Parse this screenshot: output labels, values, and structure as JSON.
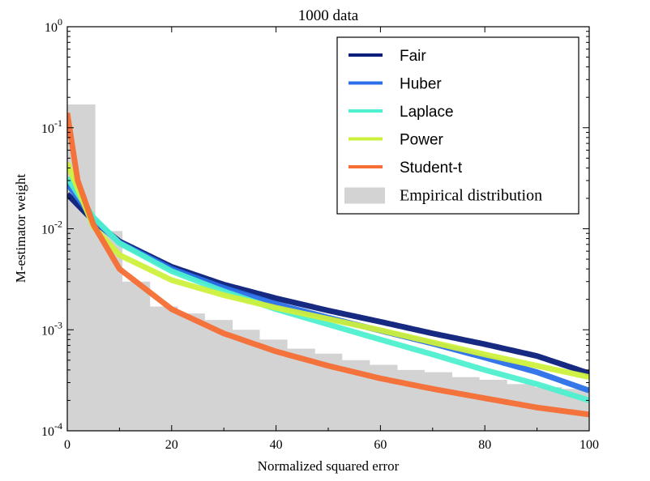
{
  "chart_data": {
    "type": "line",
    "title": "1000 data",
    "xlabel": "Normalized squared error",
    "ylabel": "M-estimator weight",
    "xlim": [
      0,
      100
    ],
    "ylim": [
      0.0001,
      1
    ],
    "yscale": "log",
    "grid": false,
    "legend_position": "top-right",
    "x_ticks": [
      {
        "value": 0,
        "label": "0"
      },
      {
        "value": 20,
        "label": "20"
      },
      {
        "value": 40,
        "label": "40"
      },
      {
        "value": 60,
        "label": "60"
      },
      {
        "value": 80,
        "label": "80"
      },
      {
        "value": 100,
        "label": "100"
      }
    ],
    "y_ticks": [
      {
        "value": 1,
        "base": "10",
        "exp": "0"
      },
      {
        "value": 0.1,
        "base": "10",
        "exp": "-1"
      },
      {
        "value": 0.01,
        "base": "10",
        "exp": "-2"
      },
      {
        "value": 0.001,
        "base": "10",
        "exp": "-3"
      },
      {
        "value": 0.0001,
        "base": "10",
        "exp": "-4"
      }
    ],
    "histogram": {
      "name": "Empirical distribution",
      "color": "#d3d3d3",
      "bin_edges": [
        0,
        5.3,
        10.5,
        15.8,
        21.1,
        26.3,
        31.6,
        36.8,
        42.1,
        47.4,
        52.6,
        57.9,
        63.2,
        68.4,
        73.7,
        78.9,
        84.2,
        89.5,
        94.7,
        100
      ],
      "values": [
        0.17,
        0.0095,
        0.003,
        0.0017,
        0.00145,
        0.00125,
        0.001,
        0.0008,
        0.00065,
        0.00058,
        0.0005,
        0.00045,
        0.0004,
        0.00038,
        0.00034,
        0.00032,
        0.00029,
        0.00027,
        0.00026
      ]
    },
    "series": [
      {
        "name": "Fair",
        "color": "#0b1f7a",
        "x": [
          0,
          5,
          10,
          20,
          30,
          40,
          50,
          60,
          70,
          80,
          90,
          100
        ],
        "values": [
          0.022,
          0.012,
          0.0075,
          0.0042,
          0.0028,
          0.00205,
          0.00155,
          0.0012,
          0.00092,
          0.00072,
          0.00055,
          0.00037
        ]
      },
      {
        "name": "Huber",
        "color": "#2a6fe8",
        "x": [
          0,
          5,
          10,
          20,
          30,
          40,
          50,
          60,
          70,
          80,
          90,
          100
        ],
        "values": [
          0.028,
          0.0125,
          0.0073,
          0.004,
          0.0026,
          0.0018,
          0.00132,
          0.00098,
          0.00073,
          0.00053,
          0.00038,
          0.00025
        ]
      },
      {
        "name": "Laplace",
        "color": "#4ef0d0",
        "x": [
          0,
          5,
          10,
          20,
          30,
          40,
          50,
          60,
          70,
          80,
          90,
          100
        ],
        "values": [
          0.032,
          0.013,
          0.0072,
          0.0038,
          0.0024,
          0.0016,
          0.00113,
          0.0008,
          0.00057,
          0.0004,
          0.00029,
          0.0002
        ]
      },
      {
        "name": "Power",
        "color": "#cdf03c",
        "x": [
          0,
          5,
          10,
          20,
          30,
          40,
          50,
          60,
          70,
          80,
          90,
          100
        ],
        "values": [
          0.045,
          0.0105,
          0.0055,
          0.0031,
          0.0022,
          0.00165,
          0.00128,
          0.00099,
          0.00075,
          0.00057,
          0.00044,
          0.00034
        ]
      },
      {
        "name": "Student-t",
        "color": "#f56e35",
        "x": [
          0,
          2,
          5,
          10,
          20,
          30,
          40,
          50,
          60,
          70,
          80,
          90,
          100
        ],
        "values": [
          0.14,
          0.03,
          0.011,
          0.004,
          0.0016,
          0.00092,
          0.00061,
          0.00044,
          0.00033,
          0.00026,
          0.00021,
          0.00017,
          0.000145
        ]
      }
    ],
    "legend": [
      {
        "label": "Fair",
        "color": "#0b1f7a",
        "kind": "line"
      },
      {
        "label": "Huber",
        "color": "#2a6fe8",
        "kind": "line"
      },
      {
        "label": "Laplace",
        "color": "#4ef0d0",
        "kind": "line"
      },
      {
        "label": "Power",
        "color": "#cdf03c",
        "kind": "line"
      },
      {
        "label": "Student-t",
        "color": "#f56e35",
        "kind": "line"
      },
      {
        "label": "Empirical distribution",
        "color": "#d3d3d3",
        "kind": "patch"
      }
    ]
  }
}
